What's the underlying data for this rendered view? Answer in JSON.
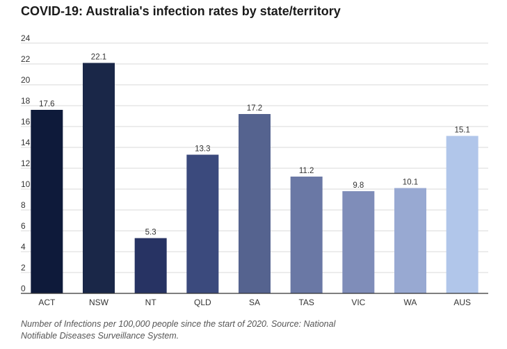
{
  "chart_data": {
    "type": "bar",
    "title": "COVID-19: Australia's infection rates by state/territory",
    "xlabel": "",
    "ylabel": "",
    "categories": [
      "ACT",
      "NSW",
      "NT",
      "QLD",
      "SA",
      "TAS",
      "VIC",
      "WA",
      "AUS"
    ],
    "values": [
      17.6,
      22.1,
      5.3,
      13.3,
      17.2,
      11.2,
      9.8,
      10.1,
      15.1
    ],
    "colors": [
      "#0e1a3a",
      "#1a2748",
      "#273363",
      "#3b4a7d",
      "#55638f",
      "#6a78a5",
      "#7f8db9",
      "#98a9d2",
      "#b1c6ea"
    ],
    "ylim": [
      0,
      24
    ],
    "yticks": [
      0,
      2,
      4,
      6,
      8,
      10,
      12,
      14,
      16,
      18,
      20,
      22,
      24
    ],
    "grid": true,
    "legend": "none"
  },
  "caption": "Number of Infections per 100,000 people since the start of 2020. Source: National Notifiable Diseases Surveillance System."
}
